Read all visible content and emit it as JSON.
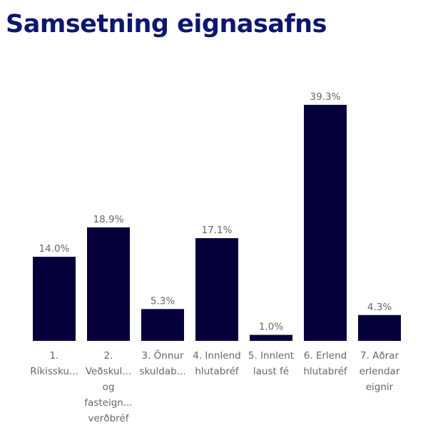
{
  "chart_data": {
    "type": "bar",
    "title": "Samsetning eignasafns",
    "categories": [
      [
        "1.",
        "Ríkissku..."
      ],
      [
        "2.",
        "Veðskul...",
        "og",
        "fasteign...",
        "verðbréf"
      ],
      [
        "3. Önnur",
        "skuldab..."
      ],
      [
        "4. Innlend",
        "hlutabréf"
      ],
      [
        "5. Innlent",
        "laust fé"
      ],
      [
        "6. Erlend",
        "hlutabréf"
      ],
      [
        "7. Aðrar",
        "erlendar",
        "eignir"
      ]
    ],
    "values": [
      14.0,
      18.9,
      5.3,
      17.1,
      1.0,
      39.3,
      4.3
    ],
    "data_labels": [
      "14.0%",
      "18.9%",
      "5.3%",
      "17.1%",
      "1.0%",
      "39.3%",
      "4.3%"
    ],
    "unit": "%",
    "ylim": [
      0,
      39.3
    ],
    "grid": false,
    "bar_color": "#06003a",
    "title_color": "#0d1670"
  }
}
